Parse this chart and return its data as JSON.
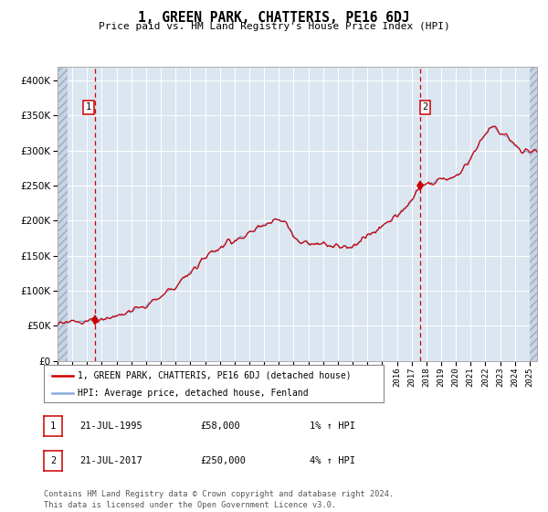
{
  "title": "1, GREEN PARK, CHATTERIS, PE16 6DJ",
  "subtitle": "Price paid vs. HM Land Registry's House Price Index (HPI)",
  "legend_line1": "1, GREEN PARK, CHATTERIS, PE16 6DJ (detached house)",
  "legend_line2": "HPI: Average price, detached house, Fenland",
  "annotation1_label": "1",
  "annotation1_date": "21-JUL-1995",
  "annotation1_price": "£58,000",
  "annotation1_hpi": "1% ↑ HPI",
  "annotation2_label": "2",
  "annotation2_date": "21-JUL-2017",
  "annotation2_price": "£250,000",
  "annotation2_hpi": "4% ↑ HPI",
  "footnote": "Contains HM Land Registry data © Crown copyright and database right 2024.\nThis data is licensed under the Open Government Licence v3.0.",
  "hpi_line_color": "#88aadd",
  "price_line_color": "#cc0000",
  "marker_color": "#cc0000",
  "vline_color": "#cc0000",
  "plot_bg_color": "#dce6f1",
  "ylim": [
    0,
    420000
  ],
  "yticks": [
    0,
    50000,
    100000,
    150000,
    200000,
    250000,
    300000,
    350000,
    400000
  ],
  "purchase1_year": 1995.55,
  "purchase1_value": 58000,
  "purchase2_year": 2017.55,
  "purchase2_value": 250000,
  "xmin": 1993.0,
  "xmax": 2025.5,
  "hatch_xmin1": 1993.0,
  "hatch_xmax1": 1993.7,
  "hatch_xmin2": 2025.0,
  "hatch_xmax2": 2025.5
}
